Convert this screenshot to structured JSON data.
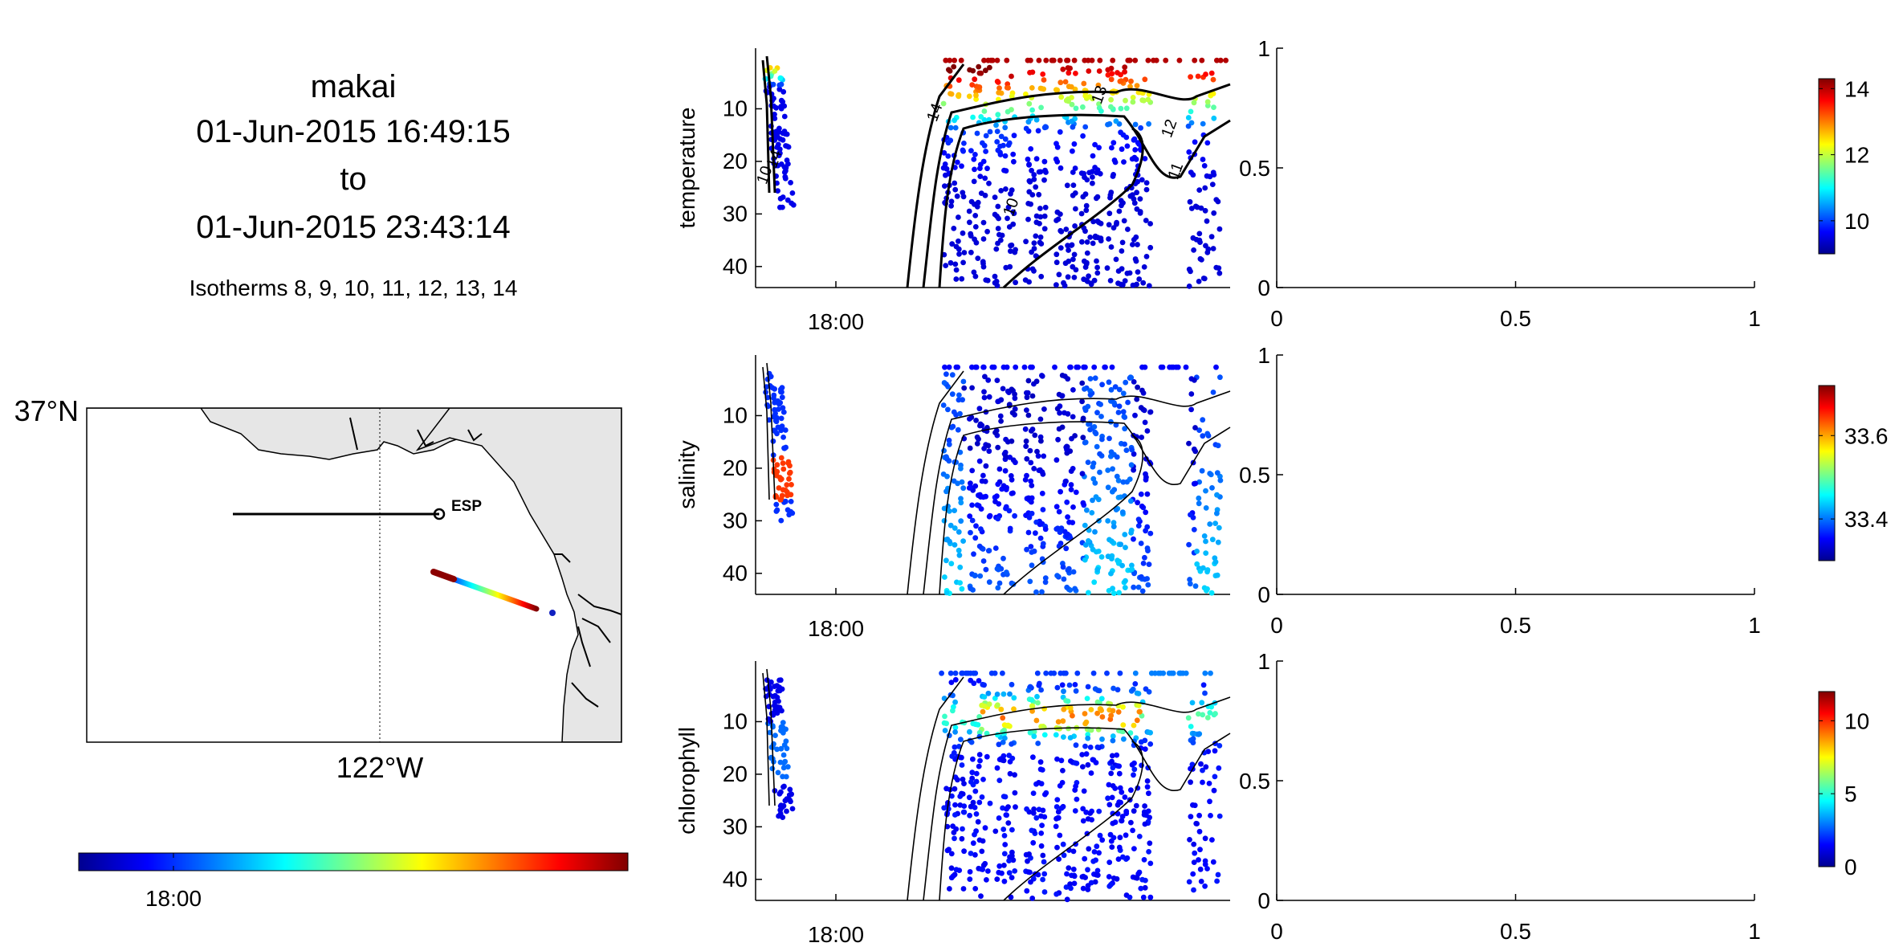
{
  "header": {
    "vehicle": "makai",
    "start": "01-Jun-2015 16:49:15",
    "to": "to",
    "end": "01-Jun-2015 23:43:14",
    "isotherms_label": "Isotherms 8, 9, 10, 11, 12, 13, 14"
  },
  "map": {
    "lat_label": "37°N",
    "lon_label": "122°W",
    "station_label": "ESP",
    "land_color": "#e6e6e6"
  },
  "time_colorbar": {
    "tick": "18:00",
    "colormap": "jet"
  },
  "colormap": [
    "#00008f",
    "#0000ff",
    "#0080ff",
    "#00ffff",
    "#80ff80",
    "#ffff00",
    "#ff8000",
    "#ff0000",
    "#800000"
  ],
  "chart_data": [
    {
      "type": "scatter",
      "title": "",
      "ylabel": "temperature",
      "xlabel": "",
      "x_ticks": [
        "18:00"
      ],
      "y_ticks": [
        10,
        20,
        30,
        40
      ],
      "y_reversed": true,
      "ylim": [
        0,
        44
      ],
      "colorbar": {
        "range": [
          9,
          14.3
        ],
        "ticks": [
          10,
          12,
          14
        ]
      },
      "contour_labels": [
        "14",
        "13",
        "12",
        "11",
        "10",
        "10",
        "14"
      ]
    },
    {
      "type": "scatter",
      "title": "",
      "ylabel": "salinity",
      "xlabel": "",
      "x_ticks": [
        "18:00"
      ],
      "y_ticks": [
        10,
        20,
        30,
        40
      ],
      "y_reversed": true,
      "ylim": [
        0,
        44
      ],
      "colorbar": {
        "range": [
          33.3,
          33.72
        ],
        "ticks": [
          33.4,
          33.6
        ]
      }
    },
    {
      "type": "scatter",
      "title": "",
      "ylabel": "chlorophyll",
      "xlabel": "",
      "x_ticks": [
        "18:00"
      ],
      "y_ticks": [
        10,
        20,
        30,
        40
      ],
      "y_reversed": true,
      "ylim": [
        0,
        44
      ],
      "colorbar": {
        "range": [
          0,
          12
        ],
        "ticks": [
          0,
          5,
          10
        ]
      }
    },
    {
      "type": "line",
      "title": "",
      "xlabel": "",
      "ylabel": "",
      "xlim": [
        0,
        1
      ],
      "ylim": [
        0,
        1
      ],
      "x_ticks": [
        "0",
        "0.5",
        "1"
      ],
      "y_ticks": [
        "0",
        "0.5",
        "1"
      ],
      "series": []
    }
  ]
}
